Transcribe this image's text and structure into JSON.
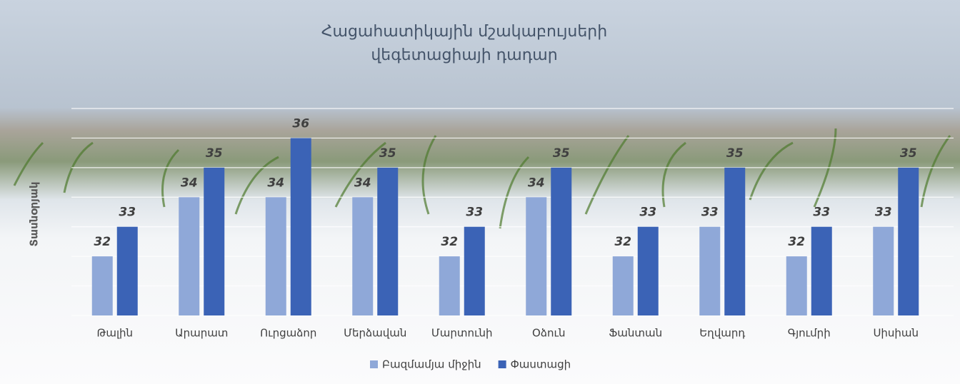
{
  "chart_data": {
    "type": "bar",
    "title": [
      "Հացահատիկային մշակաբույսերի",
      "վեգետացիայի դադար"
    ],
    "y_label": "Տասնօրյակ",
    "categories": [
      "Թալին",
      "Արարատ",
      "Ուրցաձոր",
      "Մերձավան",
      "Մարտունի",
      "Օձուն",
      "Ֆանտան",
      "Եղվարդ",
      "Գյումրի",
      "Սիսիան"
    ],
    "series": [
      {
        "name": "Բազմամյա միջին",
        "color": "#8fa8d8",
        "values": [
          32,
          34,
          34,
          34,
          32,
          34,
          32,
          33,
          32,
          33
        ]
      },
      {
        "name": "Փաստացի",
        "color": "#3b63b6",
        "values": [
          33,
          35,
          36,
          35,
          33,
          35,
          33,
          35,
          33,
          35
        ]
      }
    ],
    "ylim": [
      30,
      37
    ],
    "yticks": [
      30,
      31,
      32,
      33,
      34,
      35,
      36,
      37
    ],
    "grid": true
  }
}
